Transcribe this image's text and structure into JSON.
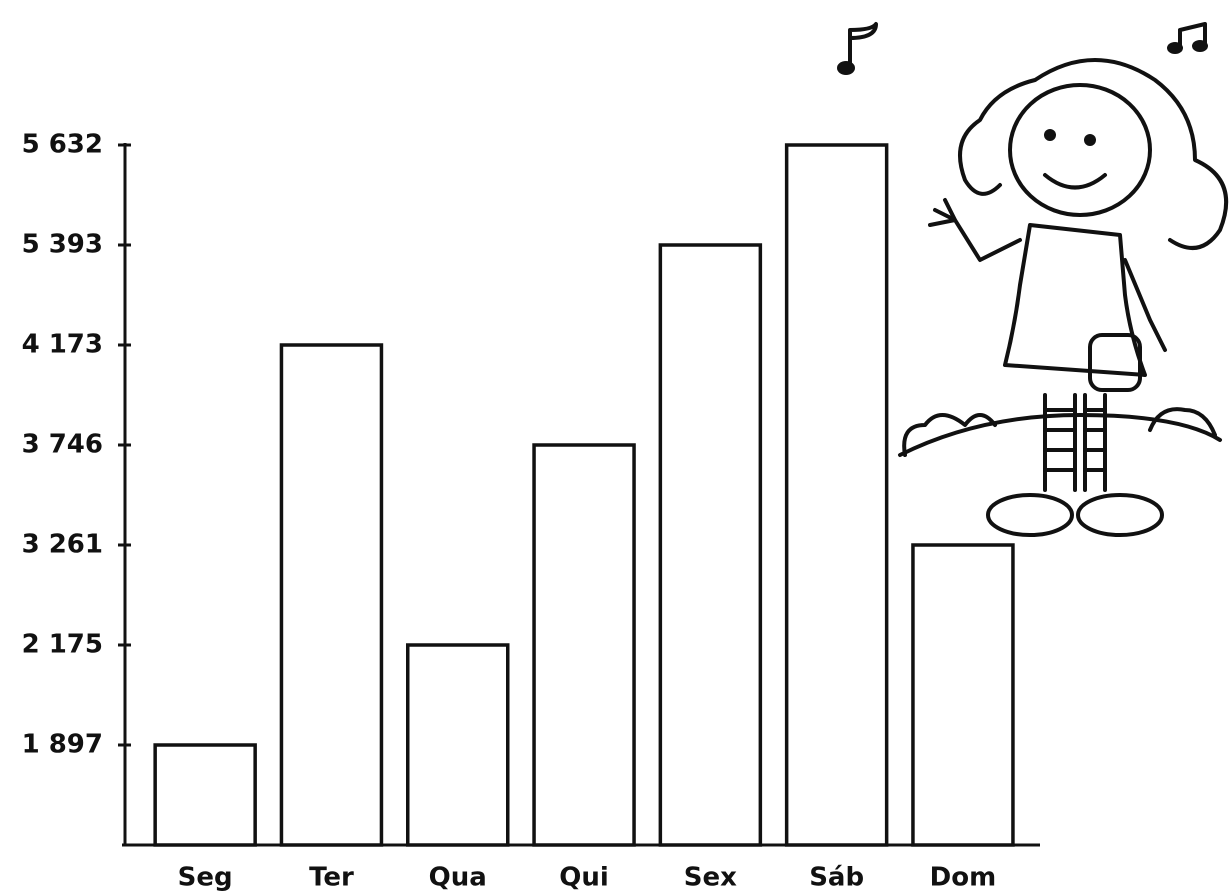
{
  "chart_data": {
    "type": "bar",
    "categories": [
      "Seg",
      "Ter",
      "Qua",
      "Qui",
      "Sex",
      "Sáb",
      "Dom"
    ],
    "values": [
      1897,
      4173,
      2175,
      3746,
      5393,
      5632,
      3261
    ],
    "color": "#ffffff",
    "yscale": "ordinal",
    "ylim": [
      0,
      5632
    ],
    "yticks": [
      {
        "value": 1897,
        "label": "1 897"
      },
      {
        "value": 2175,
        "label": "2 175"
      },
      {
        "value": 3261,
        "label": "3 261"
      },
      {
        "value": 3746,
        "label": "3 746"
      },
      {
        "value": 4173,
        "label": "4 173"
      },
      {
        "value": 5393,
        "label": "5 393"
      },
      {
        "value": 5632,
        "label": "5 632"
      }
    ],
    "grid": false
  }
}
